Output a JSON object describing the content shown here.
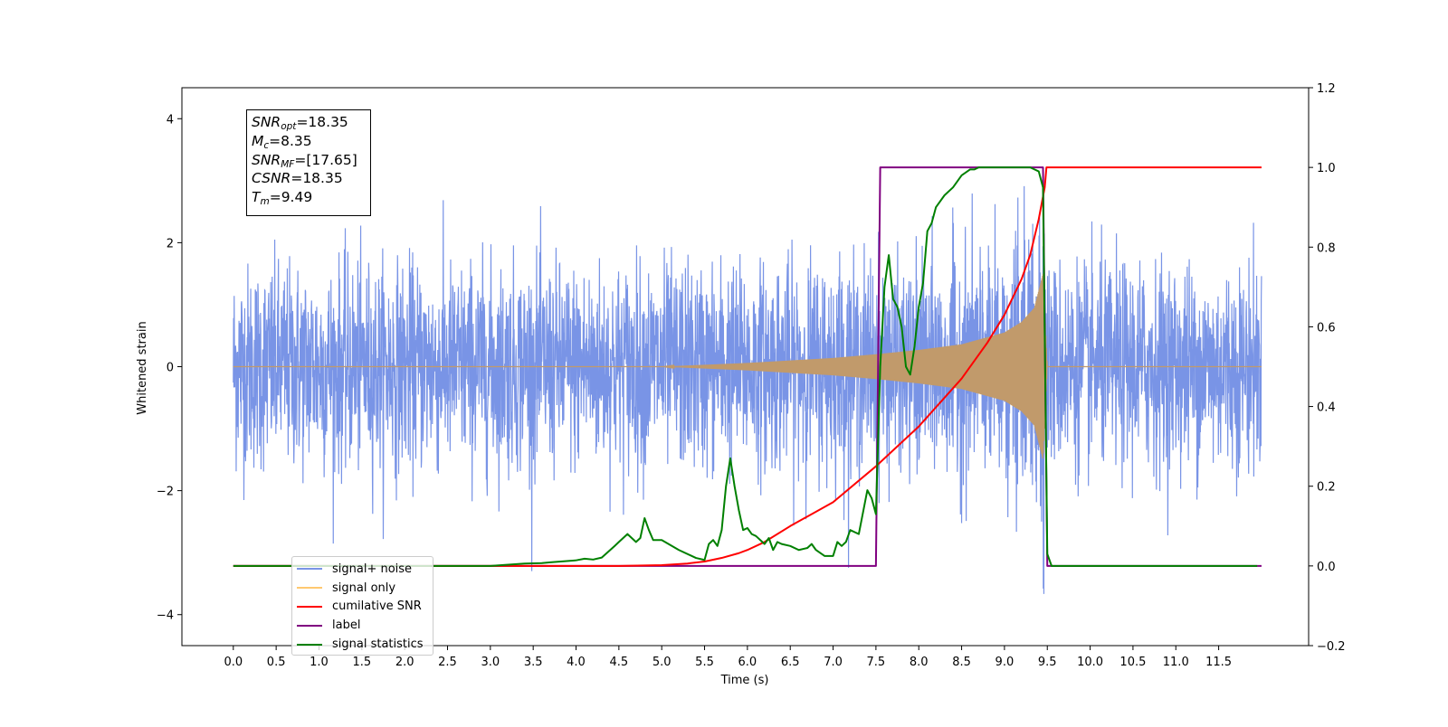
{
  "chart_data": {
    "type": "line",
    "xlabel": "Time (s)",
    "ylabel_left": "Whitened strain",
    "ylabel_right": "",
    "xlim": [
      -0.6,
      12.55
    ],
    "ylim_left": [
      -4.5,
      4.5
    ],
    "ylim_right": [
      -0.2,
      1.2
    ],
    "x_ticks": [
      "0.0",
      "0.5",
      "1.0",
      "1.5",
      "2.0",
      "2.5",
      "3.0",
      "3.5",
      "4.0",
      "4.5",
      "5.0",
      "5.5",
      "6.0",
      "6.5",
      "7.0",
      "7.5",
      "8.0",
      "8.5",
      "9.0",
      "9.5",
      "10.0",
      "10.5",
      "11.0",
      "11.5"
    ],
    "y_ticks_left": [
      "−4",
      "−2",
      "0",
      "2",
      "4"
    ],
    "y_ticks_right": [
      "−0.2",
      "0.0",
      "0.2",
      "0.4",
      "0.6",
      "0.8",
      "1.0",
      "1.2"
    ],
    "grid": false,
    "legend_position": "lower-left",
    "info_box": [
      {
        "base": "SNR",
        "sub": "opt",
        "value": "=18.35"
      },
      {
        "base": "M",
        "sub": "c",
        "value": "=8.35"
      },
      {
        "base": "SNR",
        "sub": "MF",
        "value": "=[17.65]"
      },
      {
        "base": "CSNR",
        "sub": "",
        "value": "=18.35"
      },
      {
        "base": "T",
        "sub": "m",
        "value": "=9.49"
      }
    ],
    "series": [
      {
        "name": "signal+ noise",
        "axis": "left",
        "color": "#7994e6",
        "description": "whitened noise with std about 0.8, spanning 0 to 12 s"
      },
      {
        "name": "signal only",
        "axis": "left",
        "color": "#ffc870",
        "envelope": {
          "x": [
            0,
            5.0,
            6.0,
            7.0,
            7.5,
            8.0,
            8.5,
            9.0,
            9.2,
            9.35,
            9.45,
            9.5,
            12.0
          ],
          "amplitude": [
            0,
            0,
            0.06,
            0.14,
            0.2,
            0.27,
            0.36,
            0.55,
            0.72,
            0.95,
            1.5,
            0,
            0
          ]
        }
      },
      {
        "name": "cumilative SNR",
        "axis": "right",
        "color": "#ff0000",
        "x": [
          0,
          4.5,
          5.0,
          5.3,
          5.5,
          5.7,
          5.9,
          6.0,
          6.2,
          6.5,
          7.0,
          7.5,
          8.0,
          8.5,
          8.8,
          9.0,
          9.2,
          9.3,
          9.4,
          9.47,
          9.49,
          12.0
        ],
        "values": [
          0,
          0,
          0.002,
          0.006,
          0.011,
          0.02,
          0.032,
          0.04,
          0.06,
          0.1,
          0.16,
          0.25,
          0.35,
          0.47,
          0.56,
          0.63,
          0.72,
          0.78,
          0.87,
          0.95,
          1.0,
          1.0
        ]
      },
      {
        "name": "label",
        "axis": "right",
        "color": "#800080",
        "x": [
          0,
          7.5,
          7.55,
          9.45,
          9.5,
          12.0
        ],
        "values": [
          0,
          0,
          1,
          1,
          0,
          0
        ]
      },
      {
        "name": "signal statistics",
        "axis": "right",
        "color": "#008000",
        "x": [
          0,
          3.0,
          3.4,
          3.6,
          3.7,
          4.0,
          4.1,
          4.2,
          4.3,
          4.45,
          4.5,
          4.55,
          4.6,
          4.7,
          4.75,
          4.8,
          4.85,
          4.9,
          5.0,
          5.2,
          5.4,
          5.5,
          5.55,
          5.6,
          5.65,
          5.7,
          5.75,
          5.8,
          5.85,
          5.9,
          5.95,
          6.0,
          6.05,
          6.1,
          6.2,
          6.25,
          6.3,
          6.35,
          6.4,
          6.5,
          6.6,
          6.7,
          6.75,
          6.8,
          6.9,
          7.0,
          7.05,
          7.1,
          7.15,
          7.2,
          7.3,
          7.4,
          7.45,
          7.5,
          7.55,
          7.6,
          7.65,
          7.7,
          7.75,
          7.8,
          7.85,
          7.9,
          7.95,
          8.0,
          8.05,
          8.1,
          8.15,
          8.2,
          8.3,
          8.4,
          8.5,
          8.6,
          8.65,
          8.7,
          8.75,
          8.8,
          8.9,
          9.0,
          9.1,
          9.2,
          9.3,
          9.4,
          9.45,
          9.5,
          9.55,
          11.95
        ],
        "values": [
          0,
          0,
          0.006,
          0.007,
          0.009,
          0.014,
          0.018,
          0.016,
          0.021,
          0.05,
          0.06,
          0.07,
          0.08,
          0.06,
          0.07,
          0.12,
          0.09,
          0.065,
          0.065,
          0.04,
          0.02,
          0.015,
          0.055,
          0.065,
          0.05,
          0.09,
          0.2,
          0.27,
          0.2,
          0.14,
          0.09,
          0.095,
          0.08,
          0.075,
          0.055,
          0.07,
          0.04,
          0.06,
          0.055,
          0.05,
          0.04,
          0.045,
          0.055,
          0.04,
          0.025,
          0.025,
          0.06,
          0.05,
          0.06,
          0.09,
          0.08,
          0.19,
          0.17,
          0.13,
          0.5,
          0.7,
          0.78,
          0.67,
          0.65,
          0.6,
          0.5,
          0.48,
          0.55,
          0.65,
          0.71,
          0.84,
          0.86,
          0.9,
          0.93,
          0.95,
          0.98,
          0.995,
          0.995,
          1.0,
          1.0,
          1.0,
          1.0,
          1.0,
          1.0,
          1.0,
          1.0,
          0.99,
          0.95,
          0.03,
          0.0,
          0.0
        ]
      }
    ]
  }
}
